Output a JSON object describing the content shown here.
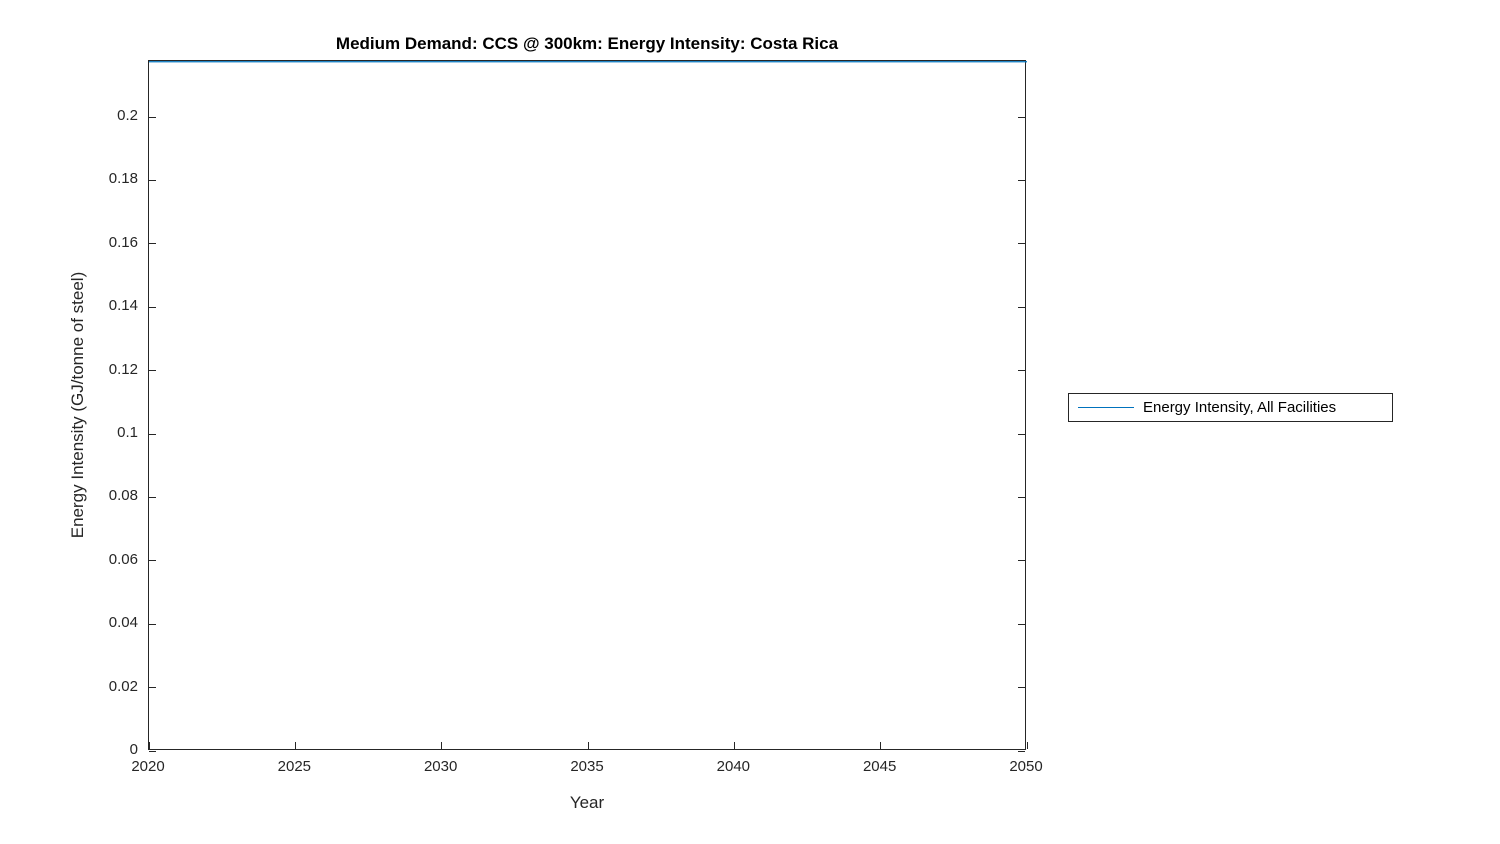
{
  "figure": {
    "background": "#ffffff"
  },
  "chart_data": {
    "type": "line",
    "title": "Medium Demand: CCS @ 300km: Energy Intensity: Costa Rica",
    "xlabel": "Year",
    "ylabel": "Energy Intensity (GJ/tonne of steel)",
    "xlim": [
      2020,
      2050
    ],
    "ylim": [
      0,
      0.2177
    ],
    "x_ticks": [
      2020,
      2025,
      2030,
      2035,
      2040,
      2045,
      2050
    ],
    "x_tick_labels": [
      "2020",
      "2025",
      "2030",
      "2035",
      "2040",
      "2045",
      "2050"
    ],
    "y_ticks": [
      0,
      0.02,
      0.04,
      0.06,
      0.08,
      0.1,
      0.12,
      0.14,
      0.16,
      0.18,
      0.2
    ],
    "y_tick_labels": [
      "0",
      "0.02",
      "0.04",
      "0.06",
      "0.08",
      "0.1",
      "0.12",
      "0.14",
      "0.16",
      "0.18",
      "0.2"
    ],
    "grid": false,
    "box": true,
    "series": [
      {
        "name": "Energy Intensity, All Facilities",
        "color": "#0072BD",
        "x": [
          2020,
          2050
        ],
        "y": [
          0.2177,
          0.2177
        ],
        "note": "constant line coinciding with top of y-axis range"
      }
    ],
    "legend": {
      "position": "outside-right",
      "entries": [
        "Energy Intensity, All Facilities"
      ]
    }
  },
  "colors": {
    "axis": "#262626",
    "line": "#0072BD",
    "background": "#ffffff"
  }
}
